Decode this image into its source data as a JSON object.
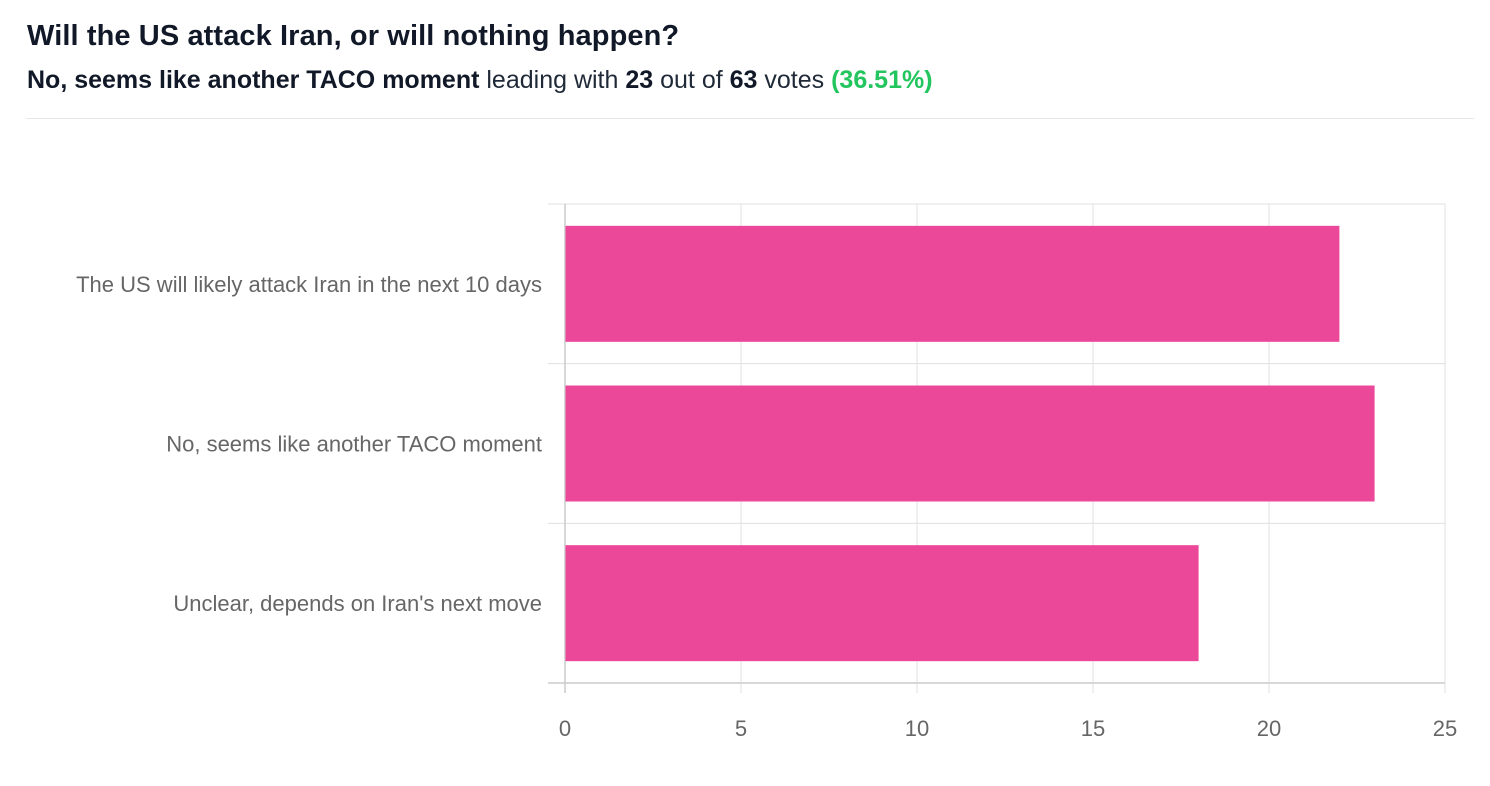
{
  "poll": {
    "title": "Will the US attack Iran, or will nothing happen?",
    "leader": "No, seems like another TACO moment",
    "text_leading_with": " leading with ",
    "leader_votes": "23",
    "text_out_of": " out of ",
    "total_votes": "63",
    "text_votes": " votes ",
    "leader_percent": "(36.51%)"
  },
  "colors": {
    "bar": "#ec4899",
    "grid": "#e0e0e0",
    "axis": "#cccccc",
    "label": "#666666",
    "accent_green": "#22c55e"
  },
  "chart_data": {
    "type": "bar",
    "orientation": "horizontal",
    "categories": [
      "The US will likely attack Iran in the next 10 days",
      "No, seems like another TACO moment",
      "Unclear, depends on Iran's next move"
    ],
    "values": [
      22,
      23,
      18
    ],
    "xlim": [
      0,
      25
    ],
    "xticks": [
      "0",
      "5",
      "10",
      "15",
      "20",
      "25"
    ],
    "grid": true,
    "legend": "none"
  }
}
